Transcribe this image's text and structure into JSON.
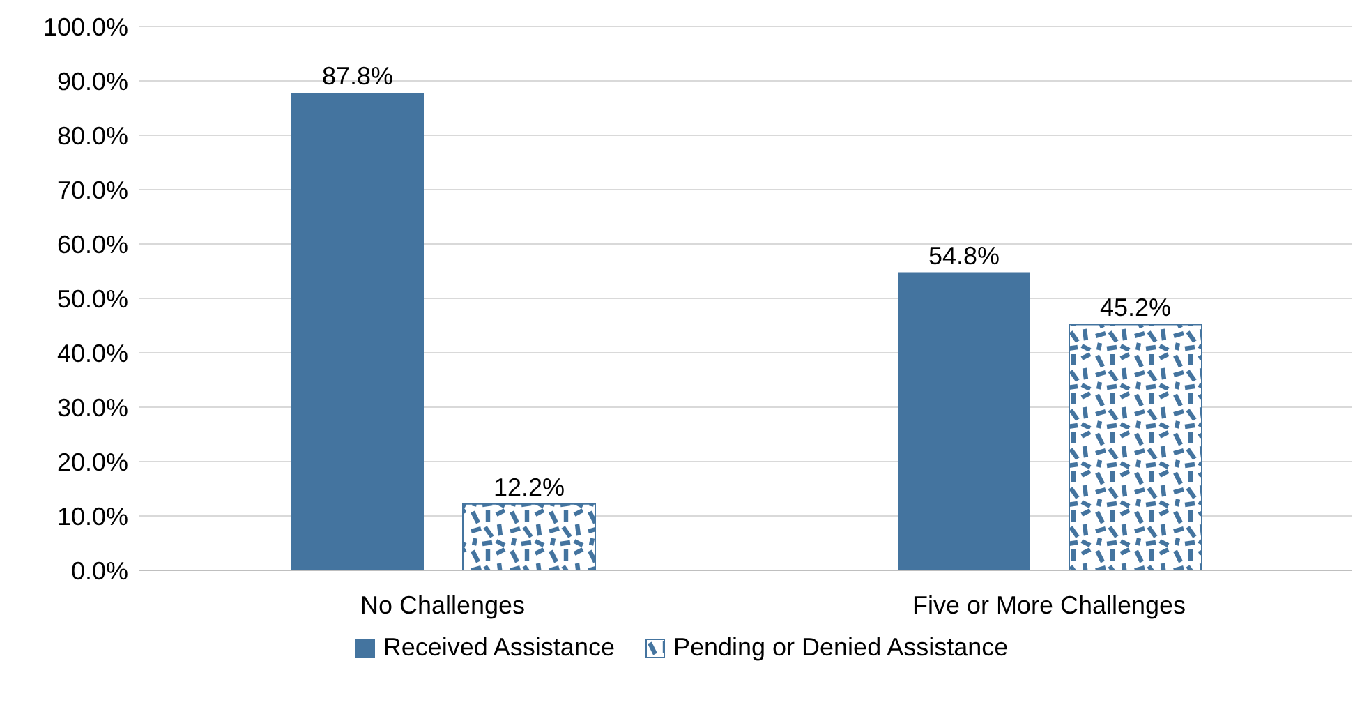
{
  "chart_data": {
    "type": "bar",
    "categories": [
      "No Challenges",
      "Five or More Challenges"
    ],
    "series": [
      {
        "name": "Received Assistance",
        "color": "#44749f",
        "values": [
          87.8,
          54.8
        ],
        "value_labels": [
          "87.8%",
          "54.8%"
        ]
      },
      {
        "name": "Pending or Denied Assistance",
        "color": "#44749f",
        "values": [
          12.2,
          45.2
        ],
        "value_labels": [
          "12.2%",
          "45.2%"
        ]
      }
    ],
    "ylim": [
      0,
      100
    ],
    "yticks": [
      {
        "value": 0,
        "label": "0.0%"
      },
      {
        "value": 10,
        "label": "10.0%"
      },
      {
        "value": 20,
        "label": "20.0%"
      },
      {
        "value": 30,
        "label": "30.0%"
      },
      {
        "value": 40,
        "label": "40.0%"
      },
      {
        "value": 50,
        "label": "50.0%"
      },
      {
        "value": 60,
        "label": "60.0%"
      },
      {
        "value": 70,
        "label": "70.0%"
      },
      {
        "value": 80,
        "label": "80.0%"
      },
      {
        "value": 90,
        "label": "90.0%"
      },
      {
        "value": 100,
        "label": "100.0%"
      }
    ],
    "grid": "y",
    "legend": "bottom"
  }
}
